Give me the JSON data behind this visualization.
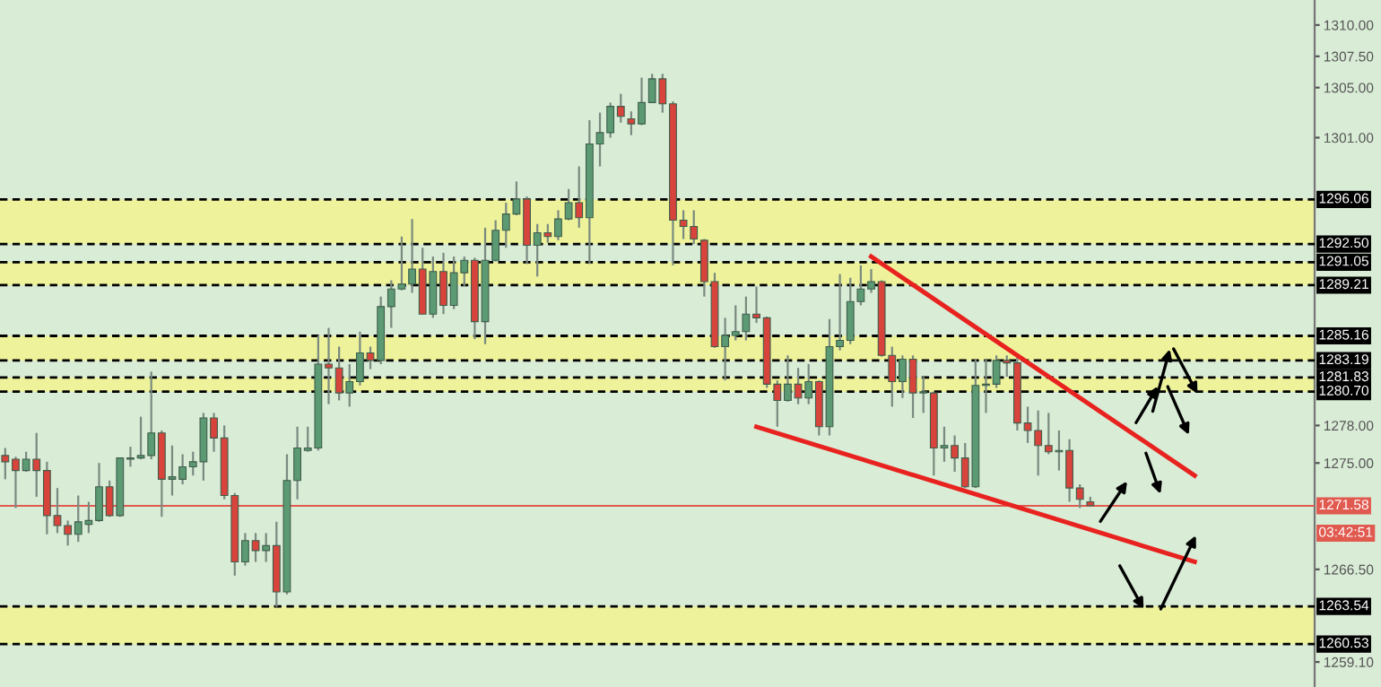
{
  "chart_data": {
    "type": "candlestick",
    "categories": [
      null,
      null,
      null,
      null,
      null,
      null,
      null,
      null,
      null,
      null,
      null,
      null,
      null,
      null,
      null,
      null,
      null,
      null,
      null,
      null,
      null,
      null,
      null,
      null,
      null,
      null,
      null,
      null,
      null,
      null,
      null,
      null,
      null,
      null,
      null,
      null,
      null,
      null,
      null,
      null,
      null,
      null,
      null,
      null,
      null,
      null,
      null,
      null,
      null,
      null,
      null,
      null,
      null,
      null,
      null,
      null,
      null,
      null,
      null,
      null,
      null,
      null,
      null,
      null,
      null,
      null,
      null,
      null,
      null,
      null,
      null,
      null,
      null,
      null,
      null,
      null,
      null,
      null,
      null,
      null,
      null,
      null,
      null,
      null,
      null,
      null,
      null,
      null,
      null,
      null,
      null,
      null,
      null,
      null,
      null,
      null,
      null,
      null,
      null,
      null,
      null,
      null,
      null,
      null,
      null,
      null,
      null,
      null,
      null,
      null,
      null,
      null,
      null,
      null,
      null,
      null,
      null,
      null,
      null,
      null,
      null,
      null,
      null,
      null,
      null,
      null
    ],
    "ohlc": [
      [
        1275.6,
        1276.2,
        1273.7,
        1275.1
      ],
      [
        1275.3,
        1275.5,
        1271.4,
        1274.4
      ],
      [
        1274.4,
        1275.9,
        1274.3,
        1275.3
      ],
      [
        1275.3,
        1277.4,
        1272.3,
        1274.4
      ],
      [
        1274.4,
        1275.1,
        1269.3,
        1270.8
      ],
      [
        1270.8,
        1273.0,
        1269.4,
        1270.0
      ],
      [
        1270.0,
        1270.4,
        1268.4,
        1269.3
      ],
      [
        1269.3,
        1272.4,
        1268.7,
        1270.3
      ],
      [
        1270.1,
        1271.9,
        1269.4,
        1270.4
      ],
      [
        1270.4,
        1275.0,
        1270.3,
        1273.1
      ],
      [
        1273.1,
        1273.6,
        1270.7,
        1270.8
      ],
      [
        1270.8,
        1275.4,
        1270.7,
        1275.4
      ],
      [
        1275.3,
        1276.3,
        1274.7,
        1275.4
      ],
      [
        1275.4,
        1278.7,
        1275.3,
        1275.6
      ],
      [
        1275.6,
        1282.3,
        1275.3,
        1277.4
      ],
      [
        1277.4,
        1277.6,
        1270.7,
        1273.7
      ],
      [
        1273.7,
        1276.4,
        1272.4,
        1273.9
      ],
      [
        1273.7,
        1275.7,
        1273.3,
        1274.7
      ],
      [
        1274.7,
        1275.9,
        1274.0,
        1275.1
      ],
      [
        1275.1,
        1279.0,
        1273.6,
        1278.6
      ],
      [
        1278.6,
        1279.0,
        1275.9,
        1277.0
      ],
      [
        1277.0,
        1278.0,
        1272.1,
        1272.4
      ],
      [
        1272.4,
        1272.6,
        1266.0,
        1267.1
      ],
      [
        1267.1,
        1269.4,
        1266.8,
        1268.8
      ],
      [
        1268.8,
        1269.4,
        1267.1,
        1268.0
      ],
      [
        1268.0,
        1269.4,
        1267.1,
        1268.4
      ],
      [
        1268.4,
        1270.3,
        1263.5,
        1264.7
      ],
      [
        1264.7,
        1275.7,
        1264.5,
        1273.6
      ],
      [
        1273.6,
        1277.9,
        1272.1,
        1276.2
      ],
      [
        1276.0,
        1277.9,
        1275.9,
        1276.2
      ],
      [
        1276.2,
        1285.2,
        1276.0,
        1282.9
      ],
      [
        1282.9,
        1285.8,
        1279.7,
        1282.6
      ],
      [
        1282.6,
        1284.3,
        1280.0,
        1280.6
      ],
      [
        1280.6,
        1282.9,
        1279.5,
        1281.5
      ],
      [
        1281.5,
        1285.5,
        1281.2,
        1283.8
      ],
      [
        1283.8,
        1284.3,
        1282.5,
        1283.2
      ],
      [
        1283.2,
        1288.3,
        1282.9,
        1287.5
      ],
      [
        1287.5,
        1289.6,
        1285.8,
        1288.9
      ],
      [
        1288.9,
        1293.1,
        1288.8,
        1289.3
      ],
      [
        1289.3,
        1294.5,
        1288.6,
        1290.5
      ],
      [
        1290.5,
        1292.2,
        1286.9,
        1286.9
      ],
      [
        1286.9,
        1291.5,
        1286.6,
        1290.3
      ],
      [
        1290.3,
        1291.8,
        1286.9,
        1287.6
      ],
      [
        1287.6,
        1291.5,
        1287.3,
        1290.2
      ],
      [
        1290.2,
        1291.5,
        1289.1,
        1291.2
      ],
      [
        1291.2,
        1291.4,
        1284.9,
        1286.3
      ],
      [
        1286.3,
        1293.8,
        1284.5,
        1291.2
      ],
      [
        1291.2,
        1294.4,
        1291.1,
        1293.6
      ],
      [
        1293.6,
        1295.8,
        1292.2,
        1294.9
      ],
      [
        1294.9,
        1297.5,
        1294.8,
        1296.1
      ],
      [
        1296.1,
        1296.3,
        1290.9,
        1292.4
      ],
      [
        1292.4,
        1294.1,
        1289.9,
        1293.4
      ],
      [
        1293.4,
        1294.1,
        1292.6,
        1293.1
      ],
      [
        1293.1,
        1295.2,
        1292.8,
        1294.5
      ],
      [
        1294.5,
        1296.9,
        1294.4,
        1295.8
      ],
      [
        1295.8,
        1298.7,
        1293.8,
        1294.6
      ],
      [
        1294.6,
        1302.4,
        1290.9,
        1300.5
      ],
      [
        1300.5,
        1303.0,
        1298.7,
        1301.4
      ],
      [
        1301.4,
        1303.8,
        1301.0,
        1303.5
      ],
      [
        1303.5,
        1304.5,
        1302.2,
        1302.7
      ],
      [
        1302.5,
        1303.1,
        1301.2,
        1302.1
      ],
      [
        1302.1,
        1305.8,
        1302.0,
        1303.8
      ],
      [
        1303.8,
        1306.1,
        1303.8,
        1305.7
      ],
      [
        1305.7,
        1306.1,
        1303.0,
        1303.7
      ],
      [
        1303.7,
        1303.9,
        1290.8,
        1294.4
      ],
      [
        1294.4,
        1295.2,
        1292.9,
        1293.9
      ],
      [
        1293.9,
        1295.2,
        1292.5,
        1292.9
      ],
      [
        1292.8,
        1292.9,
        1288.3,
        1289.5
      ],
      [
        1289.5,
        1290.2,
        1284.2,
        1284.3
      ],
      [
        1284.3,
        1286.6,
        1281.6,
        1285.2
      ],
      [
        1285.2,
        1287.6,
        1284.8,
        1285.5
      ],
      [
        1285.5,
        1288.3,
        1284.8,
        1286.9
      ],
      [
        1286.9,
        1289.1,
        1286.2,
        1286.6
      ],
      [
        1286.6,
        1286.7,
        1281.0,
        1281.3
      ],
      [
        1281.3,
        1281.6,
        1277.9,
        1280.0
      ],
      [
        1280.0,
        1283.6,
        1279.9,
        1281.3
      ],
      [
        1281.3,
        1282.6,
        1279.7,
        1280.2
      ],
      [
        1280.2,
        1282.9,
        1279.7,
        1281.5
      ],
      [
        1281.5,
        1281.6,
        1277.2,
        1277.9
      ],
      [
        1277.9,
        1286.5,
        1277.2,
        1284.3
      ],
      [
        1284.3,
        1290.1,
        1284.0,
        1284.8
      ],
      [
        1284.8,
        1289.8,
        1284.5,
        1287.9
      ],
      [
        1287.9,
        1290.8,
        1287.6,
        1288.9
      ],
      [
        1288.9,
        1290.5,
        1288.6,
        1289.5
      ],
      [
        1289.5,
        1289.6,
        1283.5,
        1283.6
      ],
      [
        1283.6,
        1284.3,
        1279.5,
        1281.5
      ],
      [
        1281.5,
        1283.6,
        1280.2,
        1283.3
      ],
      [
        1283.3,
        1283.6,
        1278.6,
        1280.6
      ],
      [
        1280.6,
        1281.9,
        1279.0,
        1280.7
      ],
      [
        1280.6,
        1280.7,
        1274.0,
        1276.2
      ],
      [
        1276.2,
        1277.9,
        1275.1,
        1276.4
      ],
      [
        1276.4,
        1277.2,
        1274.3,
        1275.4
      ],
      [
        1275.4,
        1276.6,
        1273.0,
        1273.1
      ],
      [
        1273.1,
        1283.3,
        1273.0,
        1281.2
      ],
      [
        1281.2,
        1283.3,
        1279.0,
        1281.3
      ],
      [
        1281.3,
        1283.6,
        1281.0,
        1283.2
      ],
      [
        1283.2,
        1283.6,
        1281.9,
        1283.0
      ],
      [
        1283.0,
        1283.6,
        1277.6,
        1278.2
      ],
      [
        1278.2,
        1279.5,
        1276.6,
        1277.6
      ],
      [
        1277.6,
        1279.2,
        1274.0,
        1276.4
      ],
      [
        1276.4,
        1279.0,
        1275.7,
        1275.9
      ],
      [
        1275.9,
        1277.6,
        1274.4,
        1276.0
      ],
      [
        1276.0,
        1276.9,
        1271.9,
        1273.0
      ],
      [
        1273.0,
        1273.3,
        1271.4,
        1272.1
      ],
      [
        1271.9,
        1272.3,
        1271.5,
        1271.6
      ],
      null,
      null,
      null,
      null,
      null,
      null,
      null,
      null,
      null,
      null,
      null,
      null,
      null,
      null,
      null,
      null,
      null,
      null,
      null,
      null,
      null
    ],
    "series": [
      {
        "type": "line",
        "color": "#e8231f",
        "values": [
          null,
          null,
          null,
          null,
          null,
          null,
          null,
          null,
          null,
          null,
          null,
          null,
          null,
          null,
          null,
          null,
          null,
          null,
          null,
          null,
          null,
          null,
          null,
          null,
          null,
          null,
          null,
          null,
          null,
          null,
          null,
          null,
          null,
          null,
          null,
          null,
          null,
          null,
          null,
          null,
          null,
          null,
          null,
          null,
          null,
          null,
          null,
          null,
          null,
          null,
          null,
          null,
          null,
          null,
          null,
          null,
          null,
          null,
          null,
          null,
          null,
          null,
          null,
          null,
          null,
          null,
          null,
          null,
          null,
          null,
          null,
          null,
          null,
          null,
          null,
          null,
          null,
          null,
          null,
          null,
          null,
          null,
          null,
          1291.5,
          null,
          null,
          null,
          null,
          null,
          null,
          null,
          null,
          null,
          null,
          null,
          null,
          null,
          null,
          null,
          null,
          null,
          null,
          null,
          null,
          null,
          null,
          null,
          null,
          null,
          null,
          null,
          null,
          null,
          null,
          1274.0,
          null,
          null,
          null,
          null,
          null,
          null,
          null,
          null,
          null,
          null,
          null
        ]
      },
      {
        "type": "line",
        "color": "#e8231f",
        "values": [
          null,
          null,
          null,
          null,
          null,
          null,
          null,
          null,
          null,
          null,
          null,
          null,
          null,
          null,
          null,
          null,
          null,
          null,
          null,
          null,
          null,
          null,
          null,
          null,
          null,
          null,
          null,
          null,
          null,
          null,
          null,
          null,
          null,
          null,
          null,
          null,
          null,
          null,
          null,
          null,
          null,
          null,
          null,
          null,
          null,
          null,
          null,
          null,
          null,
          null,
          null,
          null,
          null,
          null,
          null,
          null,
          null,
          null,
          null,
          null,
          null,
          null,
          null,
          null,
          null,
          null,
          null,
          null,
          null,
          null,
          null,
          null,
          1277.9,
          null,
          null,
          null,
          null,
          null,
          null,
          null,
          null,
          null,
          null,
          null,
          null,
          null,
          null,
          null,
          null,
          null,
          null,
          null,
          null,
          null,
          null,
          null,
          null,
          null,
          null,
          null,
          null,
          null,
          null,
          null,
          null,
          null,
          null,
          null,
          null,
          null,
          null,
          null,
          null,
          null,
          1267.1,
          null,
          null,
          null,
          null,
          null,
          null,
          null,
          null,
          null,
          null,
          null
        ]
      }
    ],
    "colors": [
      "#d8433b",
      "#d8433b",
      "#5b9a73",
      "#d8433b",
      "#d8433b",
      "#d8433b",
      "#d8433b",
      "#5b9a73",
      "#5b9a73",
      "#5b9a73",
      "#d8433b",
      "#5b9a73",
      "#5b9a73",
      "#5b9a73",
      "#5b9a73",
      "#d8433b",
      "#5b9a73",
      "#5b9a73",
      "#5b9a73",
      "#5b9a73",
      "#d8433b",
      "#d8433b",
      "#d8433b",
      "#5b9a73",
      "#d8433b",
      "#5b9a73",
      "#d8433b",
      "#5b9a73",
      "#5b9a73",
      "#5b9a73",
      "#5b9a73",
      "#d8433b",
      "#d8433b",
      "#5b9a73",
      "#5b9a73",
      "#d8433b",
      "#5b9a73",
      "#5b9a73",
      "#5b9a73",
      "#5b9a73",
      "#d8433b",
      "#5b9a73",
      "#d8433b",
      "#5b9a73",
      "#5b9a73",
      "#d8433b",
      "#5b9a73",
      "#5b9a73",
      "#5b9a73",
      "#5b9a73",
      "#d8433b",
      "#5b9a73",
      "#d8433b",
      "#5b9a73",
      "#5b9a73",
      "#d8433b",
      "#5b9a73",
      "#5b9a73",
      "#5b9a73",
      "#d8433b",
      "#d8433b",
      "#5b9a73",
      "#5b9a73",
      "#d8433b",
      "#d8433b",
      "#d8433b",
      "#d8433b",
      "#d8433b",
      "#d8433b",
      "#5b9a73",
      "#5b9a73",
      "#5b9a73",
      "#d8433b",
      "#d8433b",
      "#d8433b",
      "#5b9a73",
      "#d8433b",
      "#5b9a73",
      "#d8433b",
      "#5b9a73",
      "#5b9a73",
      "#5b9a73",
      "#5b9a73",
      "#5b9a73",
      "#d8433b",
      "#d8433b",
      "#5b9a73",
      "#d8433b",
      "#5b9a73",
      "#d8433b",
      "#5b9a73",
      "#d8433b",
      "#d8433b",
      "#5b9a73",
      "#5b9a73",
      "#5b9a73",
      "#d8433b",
      "#d8433b",
      "#d8433b",
      "#d8433b",
      "#d8433b",
      "#5b9a73",
      "#d8433b",
      "#d8433b",
      "#d8433b",
      null,
      null,
      null,
      null,
      null,
      null,
      null,
      null,
      null,
      null,
      null,
      null,
      null,
      null,
      null,
      null,
      null,
      null,
      null,
      null,
      null
    ],
    "ylim": [
      1257.1,
      1312.0
    ],
    "yticks": [
      {
        "value": 1310.0,
        "label": "1310.00"
      },
      {
        "value": 1307.5,
        "label": "1307.50"
      },
      {
        "value": 1305.0,
        "label": "1305.00"
      },
      {
        "value": 1301.0,
        "label": "1301.00"
      },
      {
        "value": 1278.0,
        "label": "1278.00"
      },
      {
        "value": 1275.0,
        "label": "1275.00"
      },
      {
        "value": 1266.5,
        "label": "1266.50"
      },
      {
        "value": 1259.1,
        "label": "1259.10"
      }
    ],
    "tick_labels": "y",
    "bands": [
      {
        "axis": "y",
        "from": 1292.5,
        "to": 1296.06,
        "color": "#f3f58c"
      },
      {
        "axis": "y",
        "from": 1289.21,
        "to": 1291.05,
        "color": "#f3f58c"
      },
      {
        "axis": "y",
        "from": 1283.19,
        "to": 1285.16,
        "color": "#f3f58c"
      },
      {
        "axis": "y",
        "from": 1280.7,
        "to": 1281.83,
        "color": "#f3f58c"
      },
      {
        "axis": "y",
        "from": 1260.53,
        "to": 1263.54,
        "color": "#f3f58c"
      }
    ],
    "ref_lines": [
      {
        "axis": "y",
        "value": 1296.06,
        "label": "1296.06",
        "color": "#000000",
        "line_style": "dashed"
      },
      {
        "axis": "y",
        "value": 1292.5,
        "label": "1292.50",
        "color": "#000000",
        "line_style": "dashed"
      },
      {
        "axis": "y",
        "value": 1291.05,
        "label": "1291.05",
        "color": "#000000",
        "line_style": "dashed"
      },
      {
        "axis": "y",
        "value": 1289.21,
        "label": "1289.21",
        "color": "#000000",
        "line_style": "dashed"
      },
      {
        "axis": "y",
        "value": 1285.16,
        "label": "1285.16",
        "color": "#000000",
        "line_style": "dashed"
      },
      {
        "axis": "y",
        "value": 1283.19,
        "label": "1283.19",
        "color": "#000000",
        "line_style": "dashed"
      },
      {
        "axis": "y",
        "value": 1281.83,
        "label": "1281.83",
        "color": "#000000",
        "line_style": "dashed"
      },
      {
        "axis": "y",
        "value": 1280.7,
        "label": "1280.70",
        "color": "#000000",
        "line_style": "dashed"
      },
      {
        "axis": "y",
        "value": 1263.54,
        "label": "1263.54",
        "color": "#000000",
        "line_style": "dashed"
      },
      {
        "axis": "y",
        "value": 1260.53,
        "label": "1260.53",
        "color": "#000000",
        "line_style": "dashed"
      },
      {
        "axis": "y",
        "value": 1271.58,
        "label": "1271.58",
        "color": "#e05a50",
        "line_style": "solid"
      }
    ],
    "annotations": [
      "03:42:51"
    ]
  }
}
